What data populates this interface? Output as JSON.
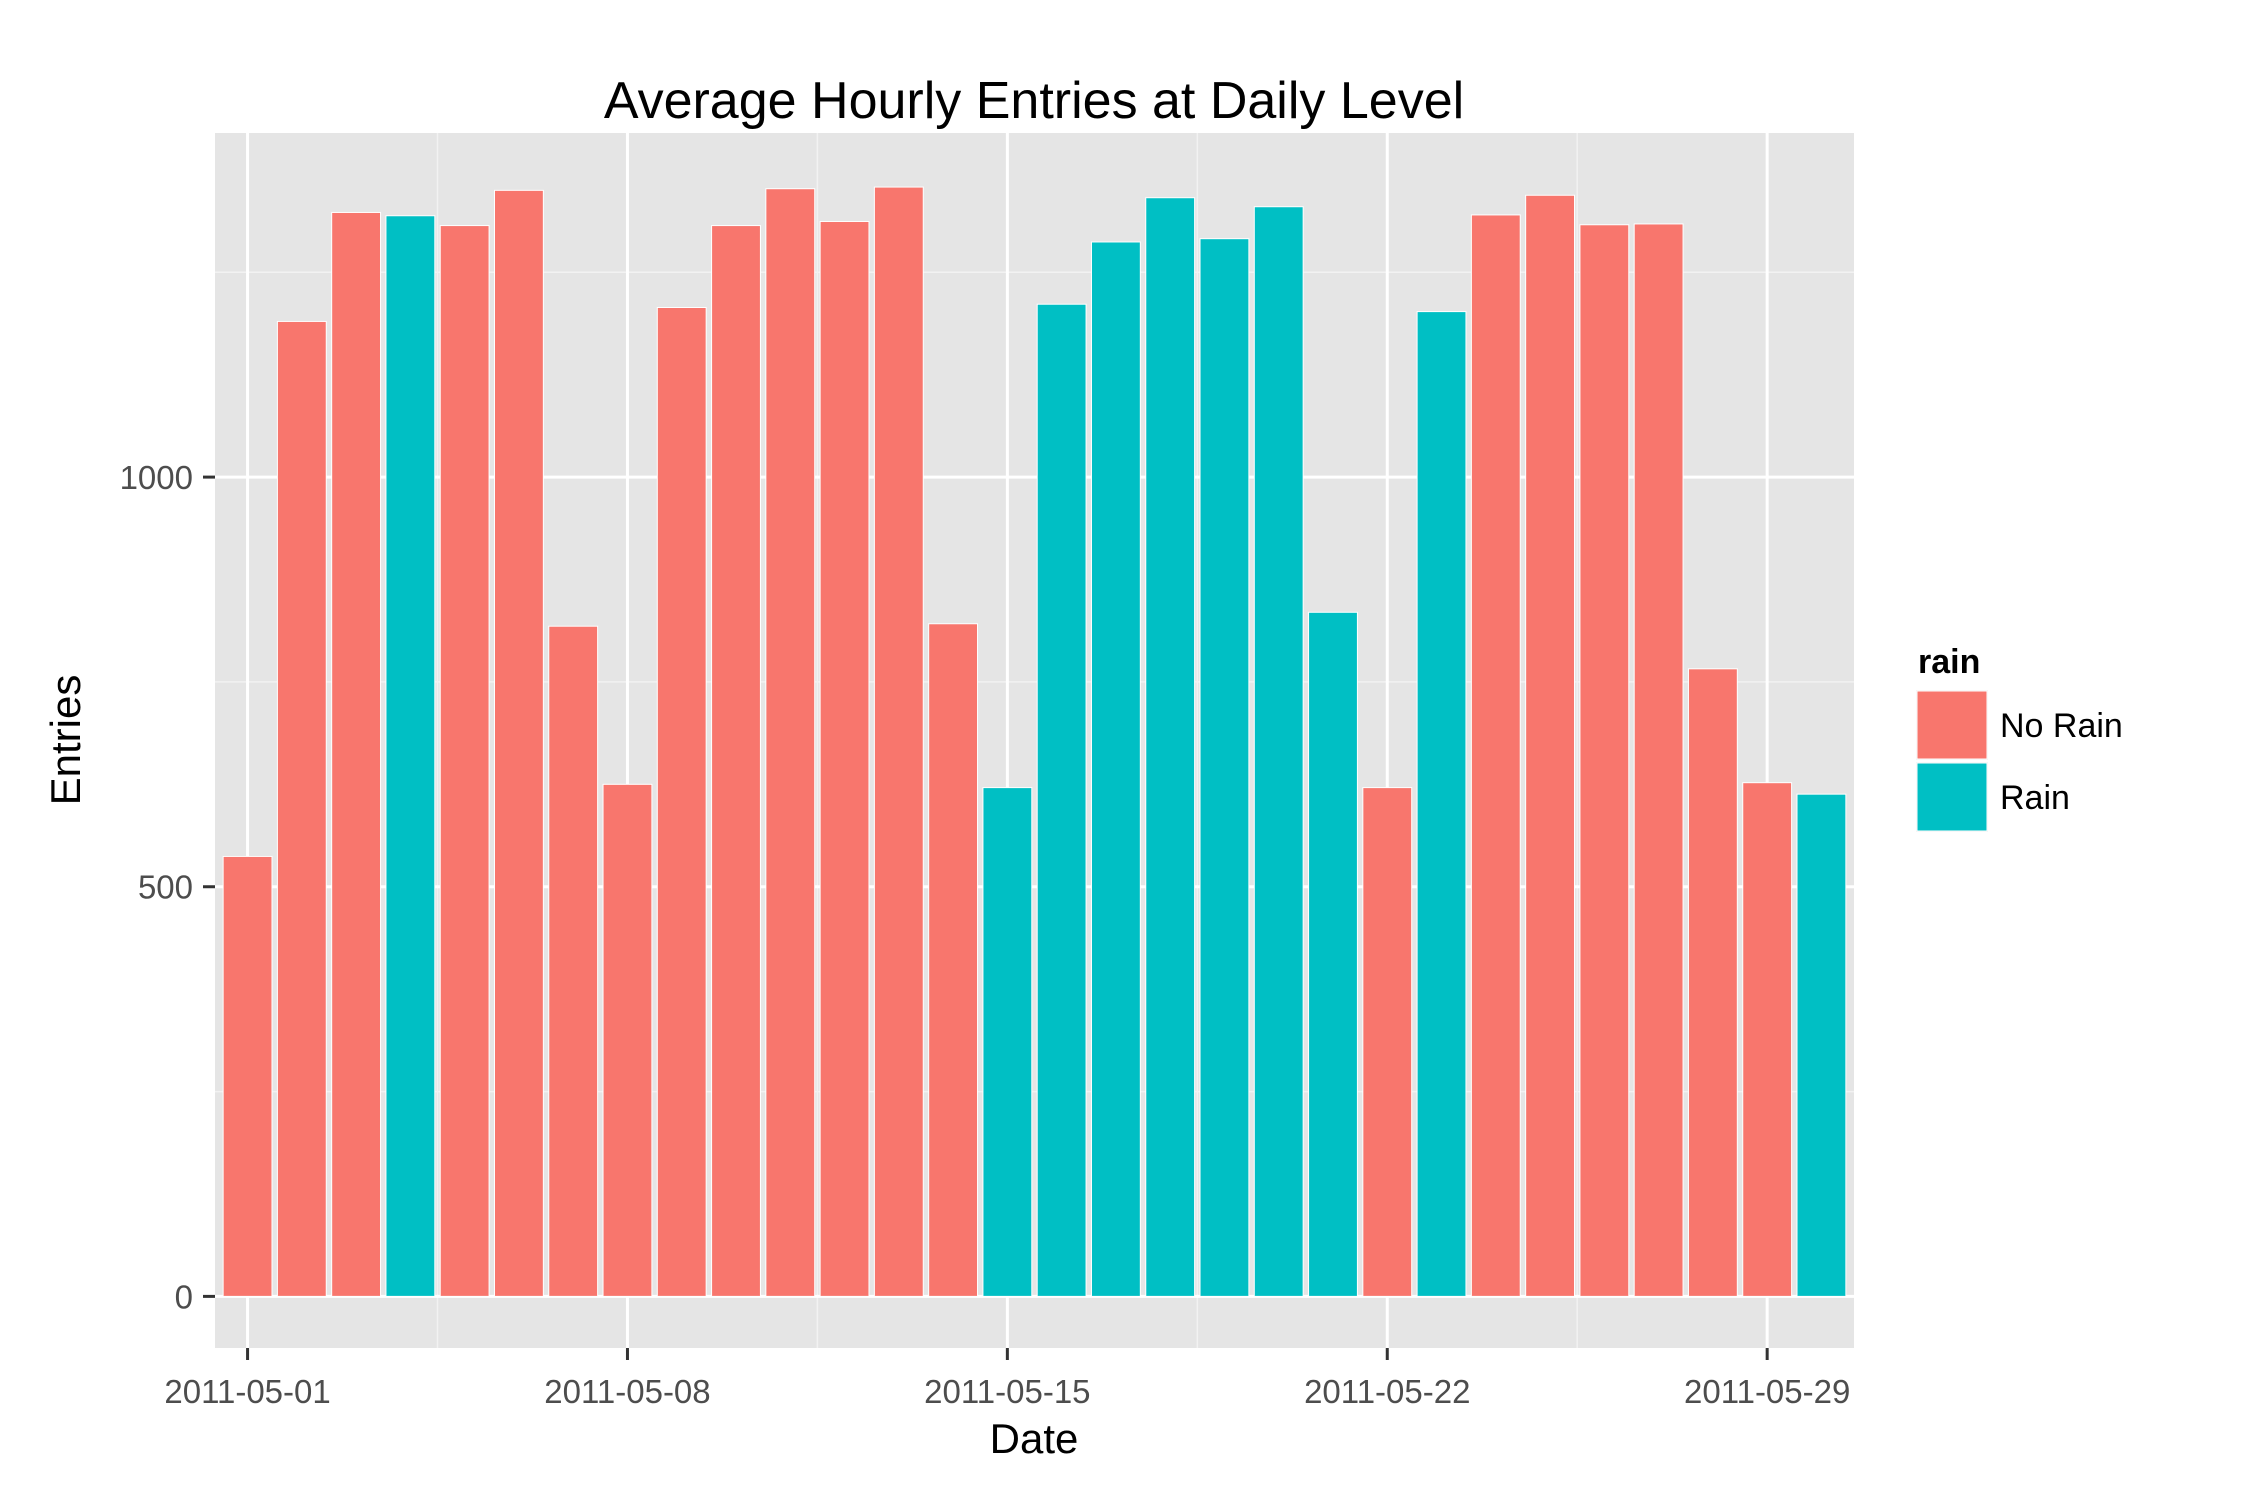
{
  "chart_data": {
    "type": "bar",
    "title": "Average Hourly Entries at Daily Level",
    "xlabel": "Date",
    "ylabel": "Entries",
    "x_ticks": [
      "2011-05-01",
      "2011-05-08",
      "2011-05-15",
      "2011-05-22",
      "2011-05-29"
    ],
    "y_ticks": [
      0,
      500,
      1000
    ],
    "ylim": [
      -63,
      1420
    ],
    "grid": true,
    "legend": {
      "title": "rain",
      "position": "right",
      "entries": [
        {
          "label": "No Rain",
          "color": "#F8766D"
        },
        {
          "label": "Rain",
          "color": "#00BFC4"
        }
      ]
    },
    "categories": [
      "2011-05-01",
      "2011-05-02",
      "2011-05-03",
      "2011-05-04",
      "2011-05-05",
      "2011-05-06",
      "2011-05-07",
      "2011-05-08",
      "2011-05-09",
      "2011-05-10",
      "2011-05-11",
      "2011-05-12",
      "2011-05-13",
      "2011-05-14",
      "2011-05-15",
      "2011-05-16",
      "2011-05-17",
      "2011-05-18",
      "2011-05-19",
      "2011-05-20",
      "2011-05-21",
      "2011-05-22",
      "2011-05-23",
      "2011-05-24",
      "2011-05-25",
      "2011-05-26",
      "2011-05-27",
      "2011-05-28",
      "2011-05-29",
      "2011-05-30"
    ],
    "values": [
      537,
      1190,
      1323,
      1319,
      1307,
      1350,
      818,
      625,
      1207,
      1307,
      1352,
      1312,
      1354,
      821,
      621,
      1211,
      1287,
      1341,
      1291,
      1330,
      835,
      621,
      1202,
      1320,
      1344,
      1308,
      1309,
      766,
      627,
      613
    ],
    "rain": [
      "No Rain",
      "No Rain",
      "No Rain",
      "Rain",
      "No Rain",
      "No Rain",
      "No Rain",
      "No Rain",
      "No Rain",
      "No Rain",
      "No Rain",
      "No Rain",
      "No Rain",
      "No Rain",
      "Rain",
      "Rain",
      "Rain",
      "Rain",
      "Rain",
      "Rain",
      "Rain",
      "No Rain",
      "Rain",
      "No Rain",
      "No Rain",
      "No Rain",
      "No Rain",
      "No Rain",
      "No Rain",
      "Rain"
    ]
  }
}
